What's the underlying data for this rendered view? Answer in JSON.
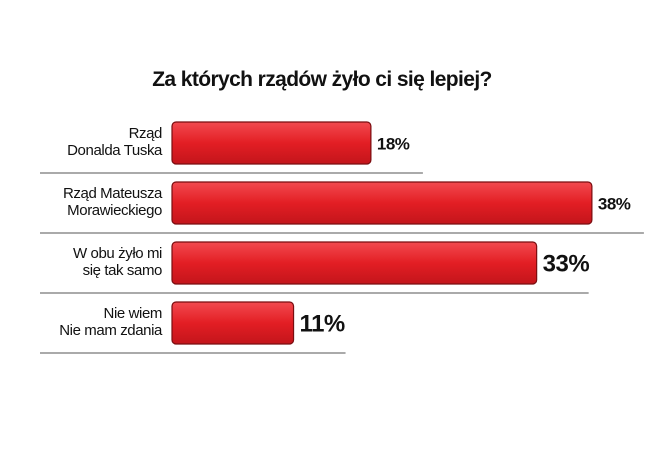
{
  "chart_data": {
    "type": "bar",
    "orientation": "horizontal",
    "title": "Za których rządów żyło ci się lepiej?",
    "categories": [
      "Rząd\nDonalda Tuska",
      "Rząd Mateusza\nMorawieckiego",
      "W obu żyło mi\nsię tak samo",
      "Nie wiem\nNie mam zdania"
    ],
    "values": [
      18,
      38,
      33,
      11
    ],
    "value_labels": [
      "18%",
      "38%",
      "33%",
      "11%"
    ],
    "color": "#e31e24"
  }
}
